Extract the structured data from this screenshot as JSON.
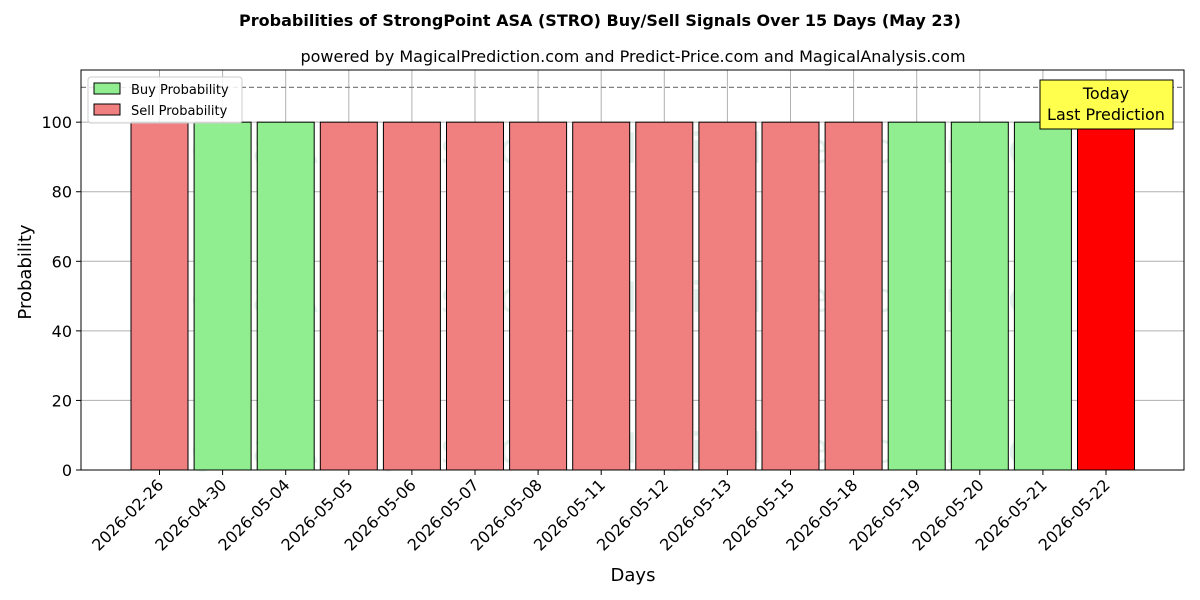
{
  "chart_data": {
    "type": "bar",
    "title": "Probabilities of StrongPoint ASA (STRO) Buy/Sell Signals Over 15 Days (May 23)",
    "subtitle": "powered by MagicalPrediction.com and Predict-Price.com and MagicalAnalysis.com",
    "xlabel": "Days",
    "ylabel": "Probability",
    "ylim": [
      0,
      115
    ],
    "yticks": [
      0,
      20,
      40,
      60,
      80,
      100
    ],
    "grid": true,
    "legend_placement": "top-left",
    "reference_line": 110,
    "categories": [
      "2026-02-26",
      "2026-04-30",
      "2026-05-04",
      "2026-05-05",
      "2026-05-06",
      "2026-05-07",
      "2026-05-08",
      "2026-05-11",
      "2026-05-12",
      "2026-05-13",
      "2026-05-15",
      "2026-05-18",
      "2026-05-19",
      "2026-05-20",
      "2026-05-21",
      "2026-05-22"
    ],
    "values": [
      100,
      100,
      100,
      100,
      100,
      100,
      100,
      100,
      100,
      100,
      100,
      100,
      100,
      100,
      100,
      100
    ],
    "signals": [
      "sell",
      "buy",
      "buy",
      "sell",
      "sell",
      "sell",
      "sell",
      "sell",
      "sell",
      "sell",
      "sell",
      "sell",
      "buy",
      "buy",
      "buy",
      "today-sell"
    ],
    "series": [
      {
        "name": "Buy Probability",
        "color": "#90ee90"
      },
      {
        "name": "Sell Probability",
        "color": "#f08080"
      }
    ],
    "today_color": "#ff0000",
    "annotation": {
      "line1": "Today",
      "line2": "Last Prediction",
      "color": "#ffff4d"
    },
    "watermarks": [
      "MagicalAnalysis.com",
      "MagicalPrediction.com"
    ]
  }
}
